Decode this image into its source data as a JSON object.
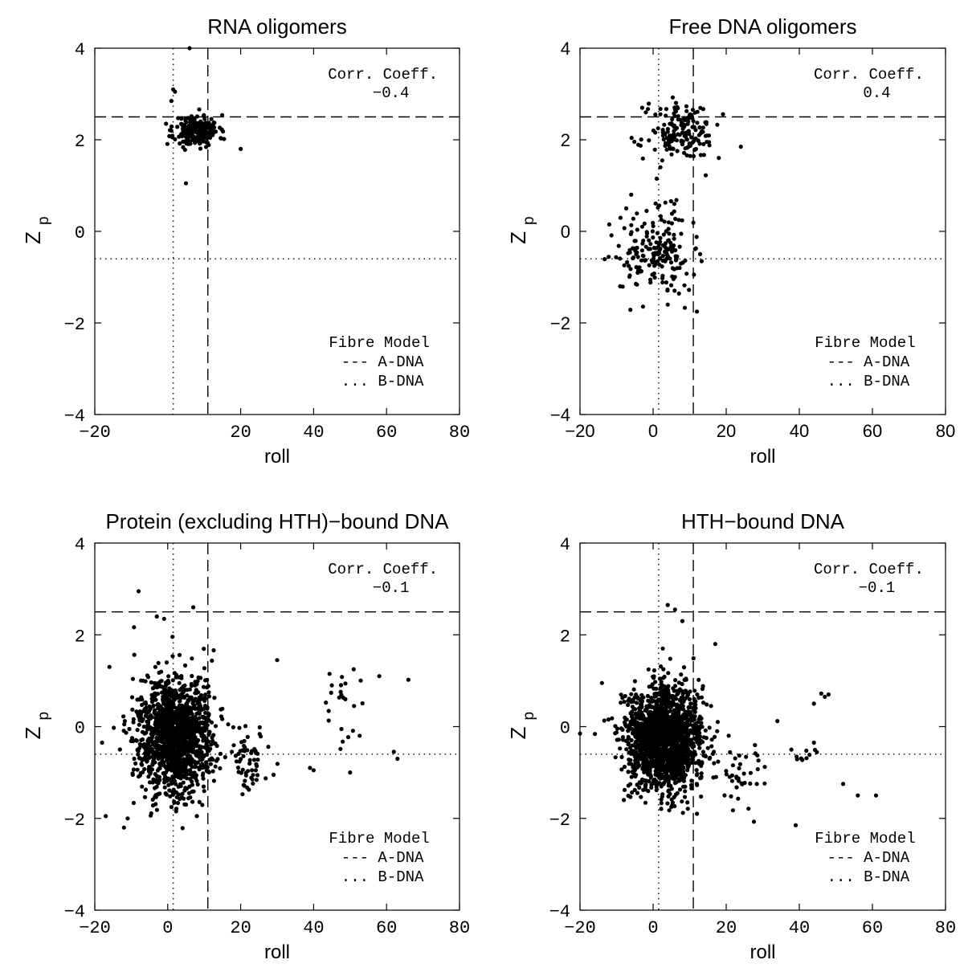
{
  "colors": {
    "points": "#000000",
    "axes": "#000000",
    "background": "#ffffff"
  },
  "chart_data": [
    {
      "type": "scatter",
      "title": "RNA oligomers",
      "xlabel": "roll",
      "ylabel": "Z",
      "ylabel_sub": "p",
      "xlim": [
        -20,
        80
      ],
      "ylim": [
        -4,
        4
      ],
      "xticks": [
        "−20",
        "20",
        "40",
        "60",
        "80"
      ],
      "xtick_values": [
        -20,
        20,
        40,
        60,
        80
      ],
      "yticks": [
        "−4",
        "−2",
        "0",
        "2",
        "4"
      ],
      "ytick_values": [
        -4,
        -2,
        0,
        2,
        4
      ],
      "tick_font": "mono",
      "grid": false,
      "corr_label": "Corr. Coeff.",
      "corr_value": "−0.4",
      "legend_title": "Fibre Model",
      "legend_a": "--- A-DNA",
      "legend_b": "... B-DNA",
      "legend_position": "bottom-right",
      "reference": {
        "a_roll": 11,
        "a_zp": 2.5,
        "b_roll": 1.5,
        "b_zp": -0.6
      },
      "outliers": [
        [
          6,
          4.0
        ],
        [
          5,
          1.05
        ],
        [
          1.5,
          3.1
        ],
        [
          2,
          3.05
        ],
        [
          1,
          2.85
        ],
        [
          20,
          1.8
        ],
        [
          1,
          2.2
        ]
      ],
      "clusters": [
        {
          "cx": 8,
          "cy": 2.2,
          "sx": 3,
          "sy": 0.17,
          "n": 220,
          "seed": 11
        }
      ]
    },
    {
      "type": "scatter",
      "title": "Free DNA oligomers",
      "xlabel": "roll",
      "ylabel": "Z",
      "ylabel_sub": "p",
      "xlim": [
        -20,
        80
      ],
      "ylim": [
        -4,
        4
      ],
      "xticks": [
        "−20",
        "0",
        "20",
        "40",
        "60",
        "80"
      ],
      "xtick_values": [
        -20,
        0,
        20,
        40,
        60,
        80
      ],
      "yticks": [
        "−4",
        "−2",
        "0",
        "2",
        "4"
      ],
      "ytick_values": [
        -4,
        -2,
        0,
        2,
        4
      ],
      "tick_font": "sans",
      "grid": false,
      "corr_label": "Corr. Coeff.",
      "corr_value": "0.4",
      "legend_title": "Fibre Model",
      "legend_a": "--- A-DNA",
      "legend_b": "... B-DNA",
      "legend_position": "bottom-right",
      "reference": {
        "a_roll": 11,
        "a_zp": 2.5,
        "b_roll": 1.5,
        "b_zp": -0.6
      },
      "outliers": [
        [
          -3,
          2.7
        ],
        [
          -2,
          2.6
        ],
        [
          2,
          1.4
        ],
        [
          1,
          1.15
        ],
        [
          2.5,
          1.55
        ],
        [
          24,
          1.85
        ],
        [
          -12,
          0.15
        ],
        [
          -6,
          0.8
        ],
        [
          12,
          -1.75
        ],
        [
          4,
          -1.6
        ],
        [
          -9,
          -1.2
        ]
      ],
      "clusters": [
        {
          "cx": 8,
          "cy": 2.15,
          "sx": 4.5,
          "sy": 0.3,
          "n": 170,
          "seed": 21
        },
        {
          "cx": 1,
          "cy": -0.45,
          "sx": 4.8,
          "sy": 0.45,
          "n": 190,
          "seed": 22
        }
      ]
    },
    {
      "type": "scatter",
      "title": "Protein (excluding HTH)−bound DNA",
      "xlabel": "roll",
      "ylabel": "Z",
      "ylabel_sub": "p",
      "xlim": [
        -20,
        80
      ],
      "ylim": [
        -4,
        4
      ],
      "xticks": [
        "−20",
        "0",
        "20",
        "40",
        "60",
        "80"
      ],
      "xtick_values": [
        -20,
        0,
        20,
        40,
        60,
        80
      ],
      "yticks": [
        "−4",
        "−2",
        "0",
        "2",
        "4"
      ],
      "ytick_values": [
        -4,
        -2,
        0,
        2,
        4
      ],
      "tick_font": "mono",
      "grid": false,
      "corr_label": "Corr. Coeff.",
      "corr_value": "−0.1",
      "legend_title": "Fibre Model",
      "legend_a": "--- A-DNA",
      "legend_b": "... B-DNA",
      "legend_position": "bottom-right",
      "reference": {
        "a_roll": 11,
        "a_zp": 2.5,
        "b_roll": 1.5,
        "b_zp": -0.6
      },
      "outliers": [
        [
          -8,
          2.95
        ],
        [
          -3,
          2.4
        ],
        [
          -1,
          2.35
        ],
        [
          7,
          2.6
        ],
        [
          -18,
          -0.35
        ],
        [
          -17,
          -1.95
        ],
        [
          -11,
          -2.0
        ],
        [
          -12,
          -2.2
        ],
        [
          -16,
          1.3
        ],
        [
          30,
          1.45
        ],
        [
          29,
          -1.05
        ],
        [
          39,
          -0.9
        ],
        [
          40,
          -0.95
        ],
        [
          50,
          -1.0
        ],
        [
          51,
          1.25
        ],
        [
          66,
          1.02
        ],
        [
          58,
          1.1
        ],
        [
          63,
          -0.7
        ],
        [
          62,
          -0.55
        ],
        [
          45,
          0.9
        ],
        [
          8,
          -1.95
        ],
        [
          5,
          -1.7
        ]
      ],
      "clusters": [
        {
          "cx": 2,
          "cy": -0.2,
          "sx": 5,
          "sy": 0.6,
          "n": 1500,
          "seed": 31
        },
        {
          "cx": 22,
          "cy": -0.7,
          "sx": 3,
          "sy": 0.35,
          "n": 60,
          "seed": 32
        },
        {
          "cx": 48,
          "cy": 0.3,
          "sx": 2.5,
          "sy": 0.45,
          "n": 22,
          "seed": 33
        }
      ]
    },
    {
      "type": "scatter",
      "title": "HTH−bound DNA",
      "xlabel": "roll",
      "ylabel": "Z",
      "ylabel_sub": "p",
      "xlim": [
        -20,
        80
      ],
      "ylim": [
        -4,
        4
      ],
      "xticks": [
        "−20",
        "0",
        "20",
        "40",
        "60",
        "80"
      ],
      "xtick_values": [
        -20,
        0,
        20,
        40,
        60,
        80
      ],
      "yticks": [
        "−4",
        "−2",
        "0",
        "2",
        "4"
      ],
      "ytick_values": [
        -4,
        -2,
        0,
        2,
        4
      ],
      "tick_font": "mono",
      "grid": false,
      "corr_label": "Corr. Coeff.",
      "corr_value": "−0.1",
      "legend_title": "Fibre Model",
      "legend_a": "--- A-DNA",
      "legend_b": "... B-DNA",
      "legend_position": "bottom-right",
      "reference": {
        "a_roll": 11,
        "a_zp": 2.5,
        "b_roll": 1.5,
        "b_zp": -0.6
      },
      "outliers": [
        [
          -20,
          -0.15
        ],
        [
          -14,
          0.95
        ],
        [
          4,
          2.65
        ],
        [
          6,
          2.55
        ],
        [
          8,
          2.3
        ],
        [
          17,
          1.8
        ],
        [
          39,
          -2.15
        ],
        [
          52,
          -1.25
        ],
        [
          56,
          -1.5
        ],
        [
          61,
          -1.5
        ],
        [
          48,
          0.7
        ],
        [
          46,
          0.72
        ],
        [
          47,
          0.65
        ],
        [
          44,
          0.5
        ],
        [
          44,
          -0.35
        ],
        [
          34,
          0.12
        ],
        [
          -8,
          -1.6
        ],
        [
          12,
          -1.9
        ]
      ],
      "clusters": [
        {
          "cx": 3,
          "cy": -0.25,
          "sx": 5,
          "sy": 0.55,
          "n": 1800,
          "seed": 41
        },
        {
          "cx": 23,
          "cy": -1.0,
          "sx": 4,
          "sy": 0.4,
          "n": 40,
          "seed": 42
        },
        {
          "cx": 41,
          "cy": -0.6,
          "sx": 2.5,
          "sy": 0.15,
          "n": 10,
          "seed": 43
        }
      ]
    }
  ]
}
